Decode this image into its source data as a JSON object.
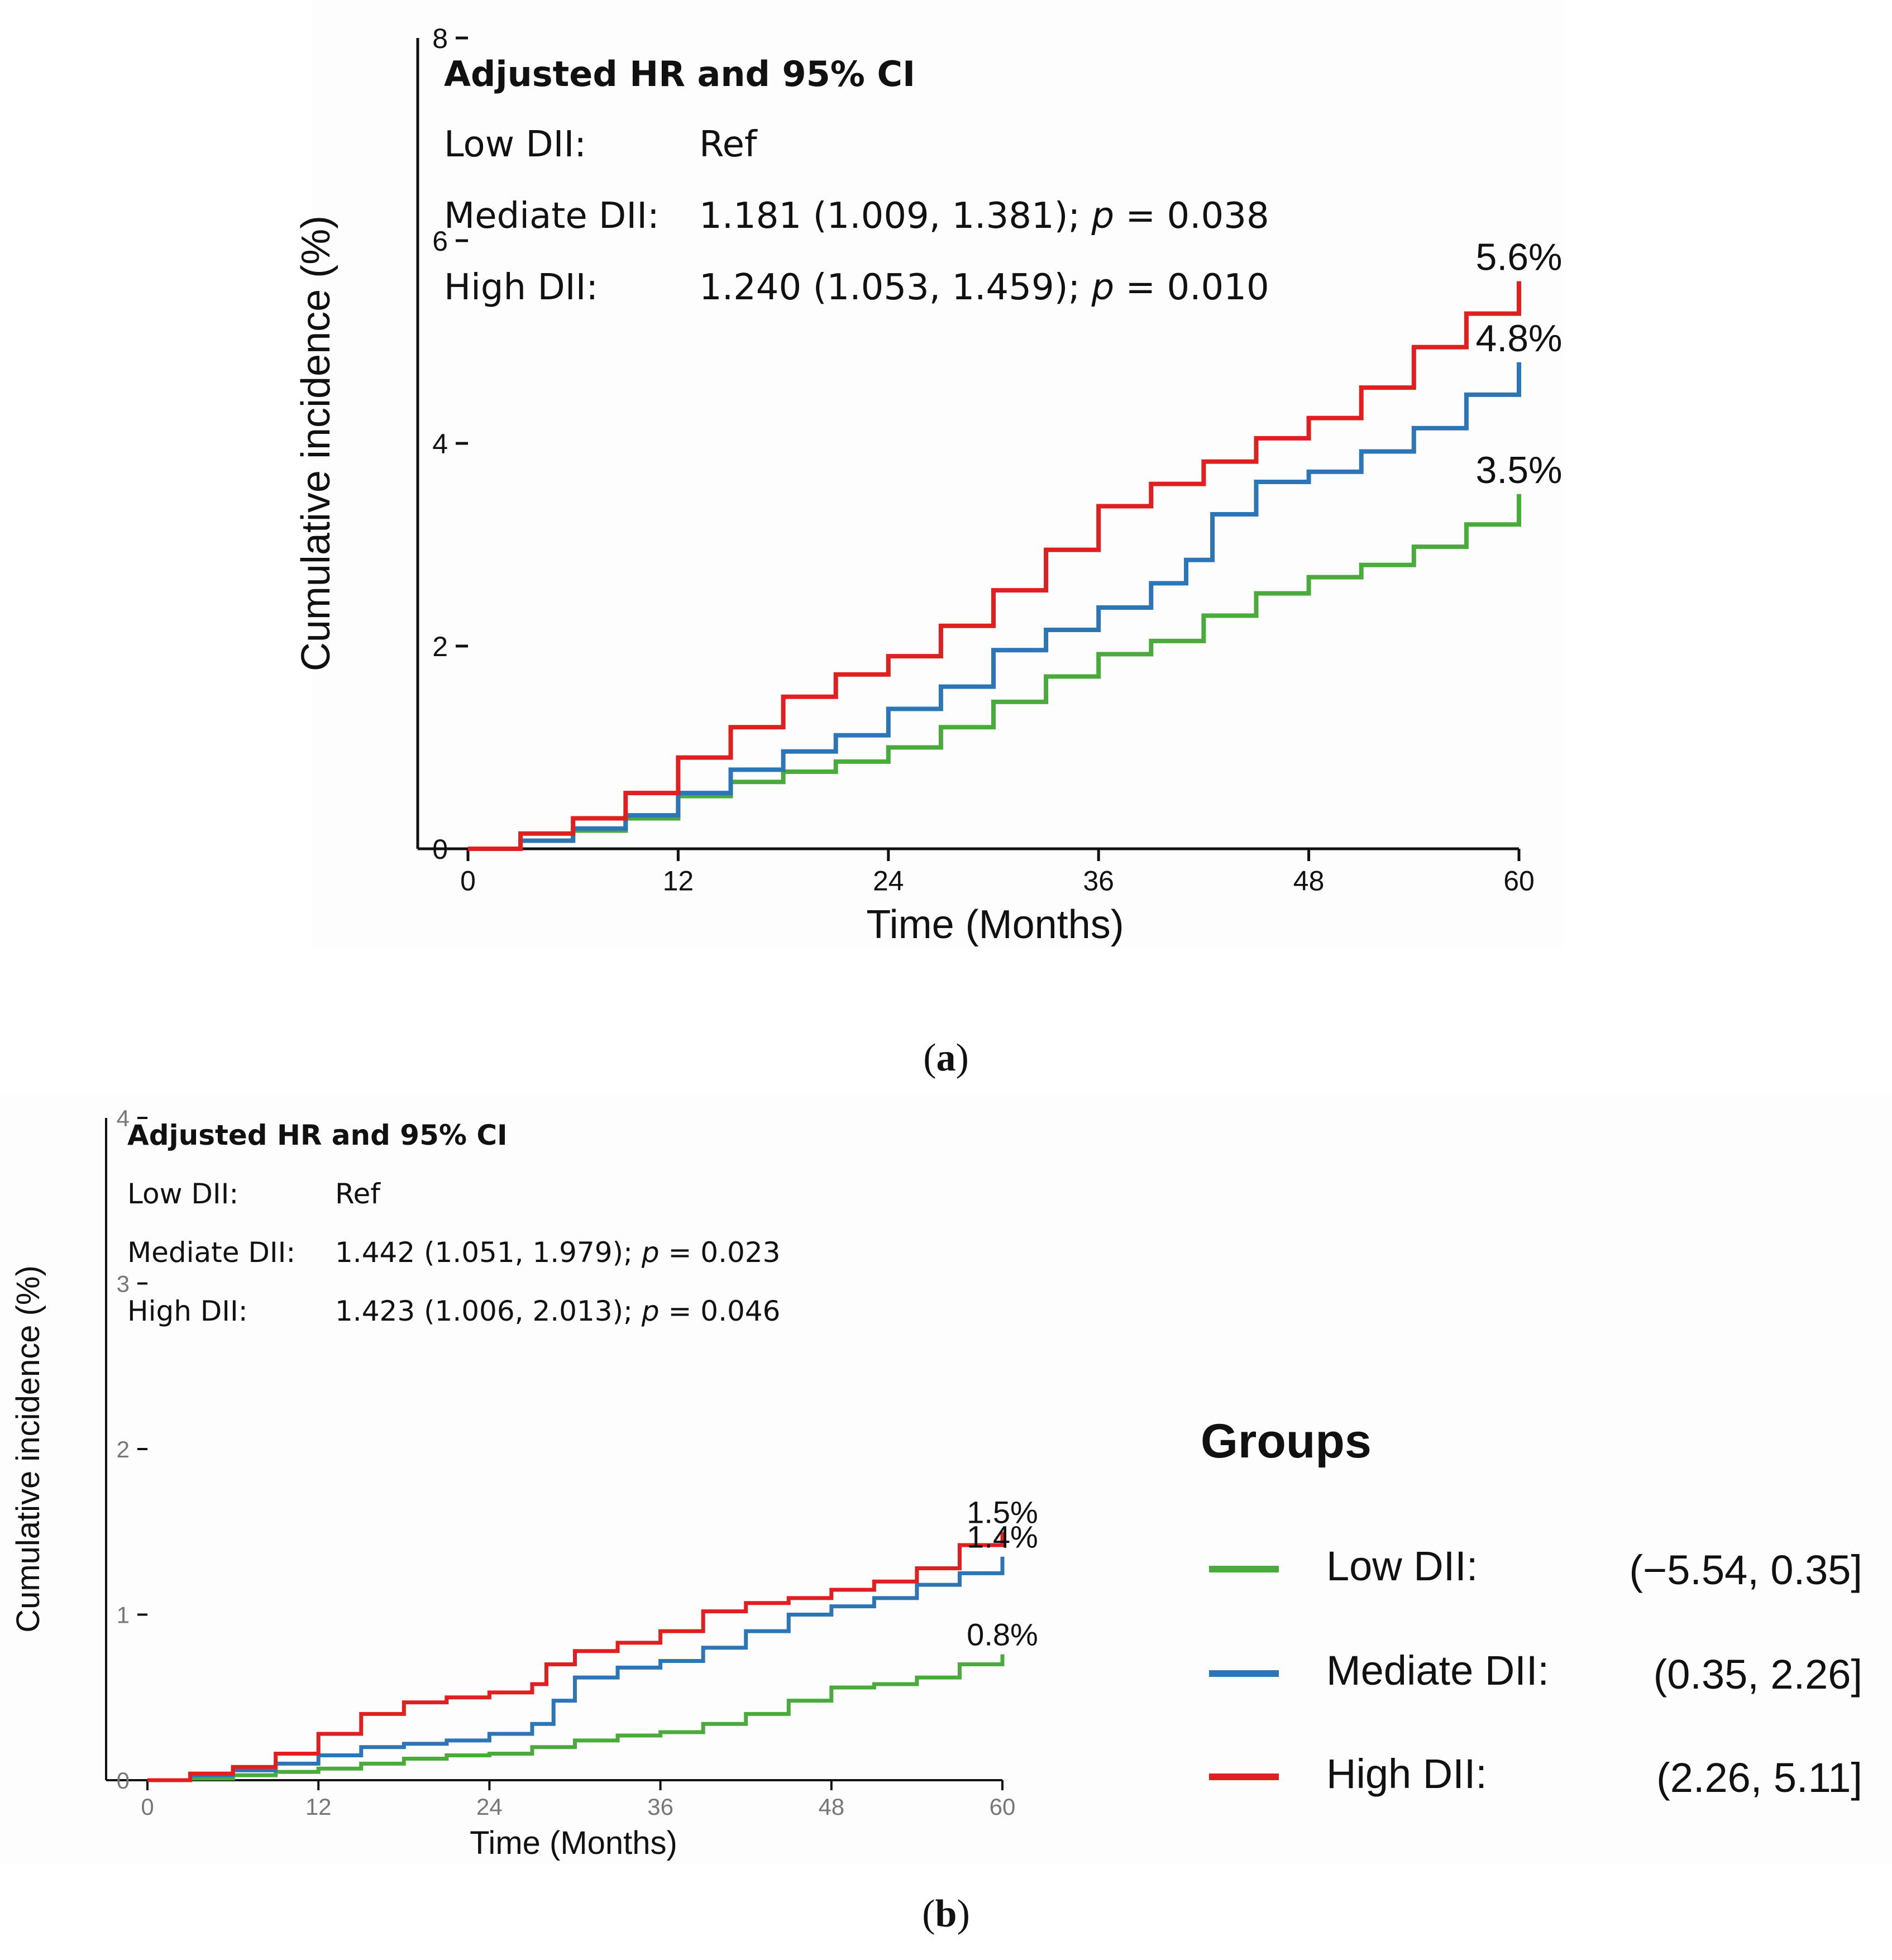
{
  "chart_data": [
    {
      "type": "line",
      "panel_label": "a",
      "xlabel": "Time (Months)",
      "ylabel": "Cumulative incidence (%)",
      "xlim": [
        0,
        60
      ],
      "ylim": [
        0,
        8
      ],
      "xticks": [
        0,
        12,
        24,
        36,
        48,
        60
      ],
      "yticks": [
        0,
        2,
        4,
        6,
        8
      ],
      "annotation": {
        "title": "Adjusted HR and 95% CI",
        "rows": [
          {
            "group": "Low DII:",
            "value": "Ref",
            "p": ""
          },
          {
            "group": "Mediate DII:",
            "value": "1.181 (1.009, 1.381); ",
            "p": " = 0.038"
          },
          {
            "group": "High DII:",
            "value": "1.240 (1.053, 1.459); ",
            "p": " = 0.010"
          }
        ],
        "p_symbol": "p"
      },
      "series": [
        {
          "name": "Low DII",
          "color": "#4aab3c",
          "end_label": "3.5%",
          "x": [
            0,
            3,
            6,
            9,
            12,
            15,
            18,
            21,
            24,
            27,
            30,
            33,
            36,
            39,
            42,
            45,
            48,
            51,
            54,
            57,
            60
          ],
          "y": [
            0,
            0.08,
            0.18,
            0.3,
            0.52,
            0.66,
            0.76,
            0.86,
            1.0,
            1.2,
            1.45,
            1.7,
            1.92,
            2.05,
            2.3,
            2.52,
            2.68,
            2.8,
            2.98,
            3.2,
            3.5
          ]
        },
        {
          "name": "Mediate DII",
          "color": "#2e75b6",
          "end_label": "4.8%",
          "x": [
            0,
            3,
            6,
            9,
            12,
            15,
            18,
            21,
            24,
            27,
            30,
            33,
            36,
            39,
            41,
            42.5,
            45,
            48,
            51,
            54,
            57,
            60
          ],
          "y": [
            0,
            0.08,
            0.2,
            0.33,
            0.55,
            0.78,
            0.96,
            1.12,
            1.38,
            1.6,
            1.96,
            2.16,
            2.38,
            2.62,
            2.85,
            3.3,
            3.62,
            3.72,
            3.92,
            4.15,
            4.48,
            4.8
          ]
        },
        {
          "name": "High DII",
          "color": "#e02020",
          "end_label": "5.6%",
          "x": [
            0,
            3,
            6,
            9,
            12,
            15,
            18,
            21,
            24,
            27,
            30,
            33,
            36,
            39,
            42,
            45,
            48,
            51,
            54,
            57,
            60
          ],
          "y": [
            0,
            0.15,
            0.3,
            0.55,
            0.9,
            1.2,
            1.5,
            1.72,
            1.9,
            2.2,
            2.55,
            2.95,
            3.38,
            3.6,
            3.82,
            4.05,
            4.25,
            4.55,
            4.95,
            5.28,
            5.6
          ]
        }
      ]
    },
    {
      "type": "line",
      "panel_label": "b",
      "xlabel": "Time (Months)",
      "ylabel": "Cumulative incidence (%)",
      "xlim": [
        0,
        60
      ],
      "ylim": [
        0,
        4
      ],
      "xticks": [
        0,
        12,
        24,
        36,
        48,
        60
      ],
      "yticks": [
        0,
        1,
        2,
        3,
        4
      ],
      "annotation": {
        "title": "Adjusted HR and 95% CI",
        "rows": [
          {
            "group": "Low DII:",
            "value": "Ref",
            "p": ""
          },
          {
            "group": "Mediate DII:",
            "value": "1.442 (1.051, 1.979); ",
            "p": " = 0.023"
          },
          {
            "group": "High DII:",
            "value": "1.423 (1.006, 2.013); ",
            "p": " = 0.046"
          }
        ],
        "p_symbol": "p"
      },
      "series": [
        {
          "name": "Low DII",
          "color": "#4aab3c",
          "end_label": "0.8%",
          "x": [
            0,
            3,
            6,
            9,
            12,
            15,
            18,
            21,
            24,
            27,
            30,
            33,
            36,
            39,
            42,
            45,
            48,
            51,
            54,
            57,
            60
          ],
          "y": [
            0,
            0.01,
            0.03,
            0.05,
            0.07,
            0.1,
            0.13,
            0.15,
            0.16,
            0.2,
            0.24,
            0.27,
            0.29,
            0.34,
            0.4,
            0.48,
            0.56,
            0.58,
            0.62,
            0.7,
            0.76
          ]
        },
        {
          "name": "Mediate DII",
          "color": "#2e75b6",
          "end_label": "1.4%",
          "x": [
            0,
            3,
            6,
            9,
            12,
            15,
            18,
            21,
            24,
            27,
            28.5,
            30,
            33,
            36,
            39,
            42,
            45,
            48,
            51,
            54,
            57,
            60
          ],
          "y": [
            0,
            0.03,
            0.06,
            0.1,
            0.15,
            0.2,
            0.22,
            0.24,
            0.28,
            0.34,
            0.48,
            0.62,
            0.68,
            0.72,
            0.8,
            0.9,
            1.0,
            1.05,
            1.1,
            1.18,
            1.25,
            1.35
          ]
        },
        {
          "name": "High DII",
          "color": "#e02020",
          "end_label": "1.5%",
          "x": [
            0,
            3,
            6,
            9,
            12,
            15,
            18,
            21,
            24,
            27,
            28,
            30,
            33,
            36,
            39,
            42,
            45,
            48,
            51,
            54,
            57,
            60
          ],
          "y": [
            0,
            0.04,
            0.08,
            0.16,
            0.28,
            0.4,
            0.47,
            0.5,
            0.53,
            0.58,
            0.7,
            0.78,
            0.83,
            0.9,
            1.02,
            1.07,
            1.1,
            1.15,
            1.2,
            1.28,
            1.42,
            1.5
          ]
        }
      ],
      "legend": {
        "title": "Groups",
        "position": "right",
        "items": [
          {
            "label": "Low DII:",
            "range": "(−5.54, 0.35]",
            "color": "#4aab3c"
          },
          {
            "label": "Mediate DII:",
            "range": "(0.35, 2.26]",
            "color": "#2e75b6"
          },
          {
            "label": "High DII:",
            "range": "(2.26, 5.11]",
            "color": "#e02020"
          }
        ]
      }
    }
  ]
}
